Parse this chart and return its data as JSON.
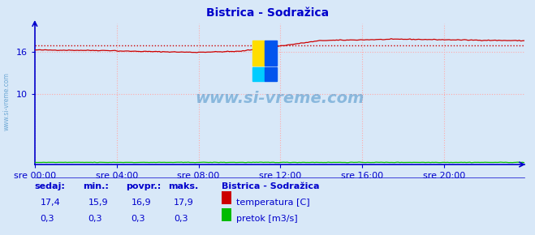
{
  "title": "Bistrica - Sodražica",
  "bg_color": "#d8e8f8",
  "plot_bg_color": "#d8e8f8",
  "grid_color": "#ffaaaa",
  "x_ticks_labels": [
    "sre 00:00",
    "sre 04:00",
    "sre 08:00",
    "sre 12:00",
    "sre 16:00",
    "sre 20:00"
  ],
  "x_ticks_pos": [
    0,
    48,
    96,
    144,
    192,
    240
  ],
  "x_max": 287,
  "y_lim": [
    0,
    20
  ],
  "y_ticks": [
    10,
    16
  ],
  "temp_color": "#cc0000",
  "flow_color": "#00bb00",
  "avg_color": "#cc0000",
  "avg_value": 16.9,
  "temp_min": 15.9,
  "temp_max": 17.9,
  "temp_current": 17.4,
  "temp_avg": 16.9,
  "flow_current": 0.3,
  "flow_min": 0.3,
  "flow_avg": 0.3,
  "flow_max": 0.3,
  "watermark": "www.si-vreme.com",
  "footer_title": "Bistrica - Sodražica",
  "legend_temp": "temperatura [C]",
  "legend_flow": "pretok [m3/s]",
  "label_sedaj": "sedaj:",
  "label_min": "min.:",
  "label_povpr": "povpr.:",
  "label_maks": "maks.",
  "title_color": "#0000cc",
  "axis_color": "#0000cc",
  "footer_color": "#0000cc",
  "watermark_color": "#5599cc",
  "logo_yellow": "#ffdd00",
  "logo_blue": "#0055ee",
  "logo_cyan": "#00ccff"
}
